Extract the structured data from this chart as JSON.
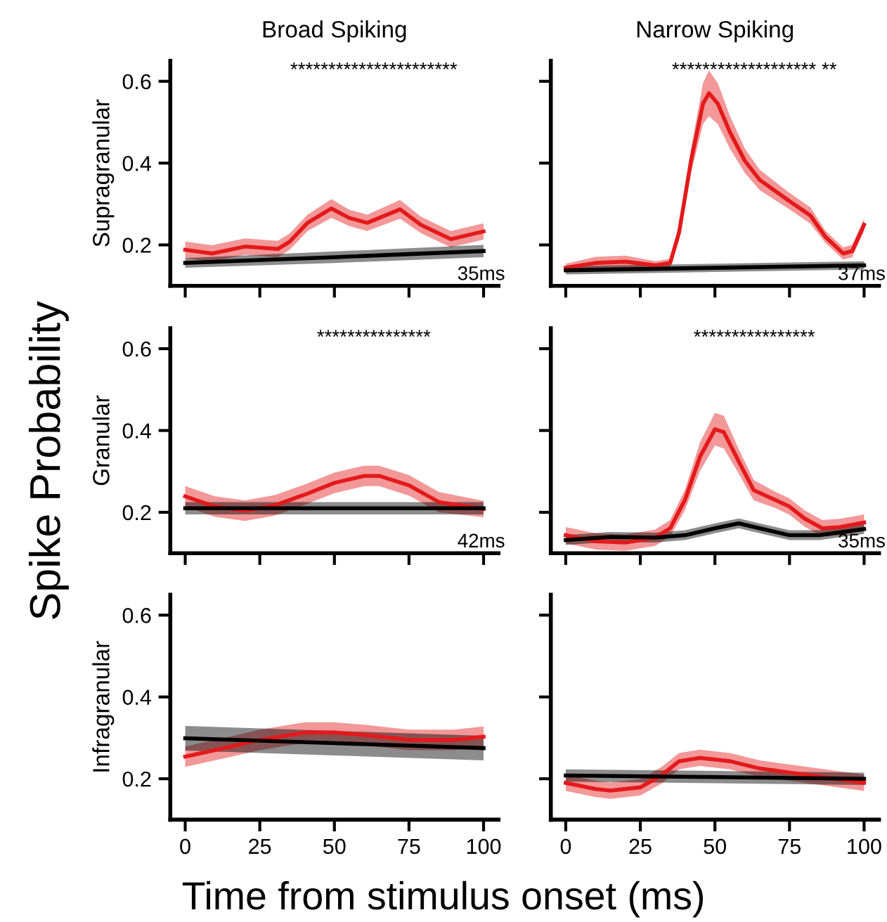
{
  "chart_data": [
    {
      "type": "line",
      "title": "Broad Spiking",
      "ylabel": "Supragranular",
      "xlim": [
        -5,
        105
      ],
      "ylim": [
        0.1,
        0.65
      ],
      "xticks": [
        0,
        25,
        50,
        75,
        100
      ],
      "yticks": [
        0.2,
        0.4,
        0.6
      ],
      "tick_labels": "y",
      "annotations": [
        "**********************",
        "35ms",
        "Spike Probability"
      ],
      "series": [
        {
          "color": "#e31a1c",
          "x": [
            0,
            9,
            20,
            31,
            35,
            41,
            49,
            55,
            61,
            72,
            79,
            89,
            100
          ],
          "values": [
            0.188,
            0.179,
            0.196,
            0.19,
            0.208,
            0.254,
            0.289,
            0.266,
            0.254,
            0.287,
            0.249,
            0.214,
            0.233
          ],
          "lower": [
            0.168,
            0.159,
            0.176,
            0.17,
            0.188,
            0.234,
            0.266,
            0.246,
            0.234,
            0.264,
            0.229,
            0.194,
            0.213
          ],
          "upper": [
            0.208,
            0.199,
            0.216,
            0.21,
            0.228,
            0.274,
            0.312,
            0.286,
            0.274,
            0.31,
            0.269,
            0.234,
            0.253
          ]
        },
        {
          "color": "#000000",
          "x": [
            0,
            50,
            100
          ],
          "values": [
            0.156,
            0.17,
            0.185
          ],
          "lower": [
            0.144,
            0.156,
            0.17
          ],
          "upper": [
            0.168,
            0.184,
            0.2
          ]
        }
      ]
    },
    {
      "type": "line",
      "title": "Narrow Spiking",
      "xlim": [
        -5,
        105
      ],
      "ylim": [
        0.1,
        0.65
      ],
      "xticks": [
        0,
        25,
        50,
        75,
        100
      ],
      "yticks": [
        0.2,
        0.4,
        0.6
      ],
      "tick_labels": false,
      "annotations": [
        "******************* **",
        "37ms"
      ],
      "series": [
        {
          "color": "#e31a1c",
          "x": [
            0,
            10,
            20,
            30,
            35,
            38,
            42,
            46,
            48,
            51,
            55,
            60,
            65,
            75,
            82,
            87,
            93,
            96,
            100
          ],
          "values": [
            0.144,
            0.156,
            0.159,
            0.15,
            0.156,
            0.231,
            0.406,
            0.545,
            0.571,
            0.545,
            0.476,
            0.406,
            0.359,
            0.307,
            0.272,
            0.22,
            0.179,
            0.185,
            0.249
          ],
          "lower": [
            0.134,
            0.141,
            0.144,
            0.14,
            0.146,
            0.211,
            0.376,
            0.495,
            0.515,
            0.495,
            0.436,
            0.376,
            0.334,
            0.287,
            0.252,
            0.205,
            0.164,
            0.17,
            0.234
          ],
          "upper": [
            0.154,
            0.171,
            0.174,
            0.16,
            0.166,
            0.251,
            0.436,
            0.595,
            0.627,
            0.595,
            0.516,
            0.436,
            0.384,
            0.327,
            0.292,
            0.235,
            0.194,
            0.2,
            0.264
          ]
        },
        {
          "color": "#000000",
          "x": [
            0,
            50,
            100
          ],
          "values": [
            0.138,
            0.144,
            0.15
          ],
          "lower": [
            0.128,
            0.134,
            0.14
          ],
          "upper": [
            0.148,
            0.154,
            0.16
          ]
        }
      ]
    },
    {
      "type": "line",
      "ylabel": "Granular",
      "xlim": [
        -5,
        105
      ],
      "ylim": [
        0.1,
        0.65
      ],
      "xticks": [
        0,
        25,
        50,
        75,
        100
      ],
      "yticks": [
        0.2,
        0.4,
        0.6
      ],
      "tick_labels": "y",
      "annotations": [
        "***************",
        "42ms"
      ],
      "series": [
        {
          "color": "#e31a1c",
          "x": [
            0,
            10,
            20,
            30,
            40,
            50,
            60,
            65,
            75,
            85,
            100
          ],
          "values": [
            0.239,
            0.214,
            0.204,
            0.217,
            0.243,
            0.272,
            0.289,
            0.289,
            0.266,
            0.225,
            0.208
          ],
          "lower": [
            0.214,
            0.189,
            0.179,
            0.192,
            0.218,
            0.247,
            0.264,
            0.264,
            0.241,
            0.2,
            0.188
          ],
          "upper": [
            0.264,
            0.239,
            0.229,
            0.242,
            0.268,
            0.297,
            0.314,
            0.314,
            0.291,
            0.25,
            0.228
          ]
        },
        {
          "color": "#000000",
          "x": [
            0,
            50,
            100
          ],
          "values": [
            0.21,
            0.21,
            0.21
          ],
          "lower": [
            0.195,
            0.195,
            0.195
          ],
          "upper": [
            0.225,
            0.225,
            0.225
          ]
        }
      ]
    },
    {
      "type": "line",
      "xlim": [
        -5,
        105
      ],
      "ylim": [
        0.1,
        0.65
      ],
      "xticks": [
        0,
        25,
        50,
        75,
        100
      ],
      "yticks": [
        0.2,
        0.4,
        0.6
      ],
      "tick_labels": false,
      "annotations": [
        "****************",
        "35ms"
      ],
      "series": [
        {
          "color": "#e31a1c",
          "x": [
            0,
            10,
            20,
            30,
            35,
            40,
            45,
            50,
            53,
            58,
            63,
            70,
            75,
            80,
            86,
            92,
            100
          ],
          "values": [
            0.144,
            0.129,
            0.126,
            0.138,
            0.161,
            0.231,
            0.336,
            0.403,
            0.396,
            0.324,
            0.254,
            0.231,
            0.214,
            0.185,
            0.161,
            0.164,
            0.175
          ],
          "lower": [
            0.124,
            0.109,
            0.106,
            0.118,
            0.141,
            0.206,
            0.301,
            0.363,
            0.356,
            0.294,
            0.229,
            0.211,
            0.194,
            0.165,
            0.141,
            0.144,
            0.155
          ],
          "upper": [
            0.164,
            0.149,
            0.146,
            0.158,
            0.181,
            0.256,
            0.371,
            0.443,
            0.436,
            0.354,
            0.279,
            0.251,
            0.234,
            0.205,
            0.181,
            0.184,
            0.195
          ]
        },
        {
          "color": "#000000",
          "x": [
            0,
            15,
            30,
            40,
            50,
            58,
            65,
            75,
            85,
            100
          ],
          "values": [
            0.132,
            0.14,
            0.138,
            0.144,
            0.161,
            0.173,
            0.161,
            0.144,
            0.144,
            0.159
          ],
          "lower": [
            0.12,
            0.128,
            0.126,
            0.132,
            0.149,
            0.161,
            0.149,
            0.132,
            0.132,
            0.147
          ],
          "upper": [
            0.144,
            0.152,
            0.15,
            0.156,
            0.173,
            0.185,
            0.173,
            0.156,
            0.156,
            0.171
          ]
        }
      ]
    },
    {
      "type": "line",
      "ylabel": "Infragranular",
      "xlabel": "Time from stimulus onset (ms)",
      "xlim": [
        -5,
        105
      ],
      "ylim": [
        0.1,
        0.65
      ],
      "xticks": [
        0,
        25,
        50,
        75,
        100
      ],
      "yticks": [
        0.2,
        0.4,
        0.6
      ],
      "series": [
        {
          "color": "#e31a1c",
          "x": [
            0,
            15,
            25,
            40,
            50,
            60,
            75,
            90,
            100
          ],
          "values": [
            0.254,
            0.278,
            0.295,
            0.313,
            0.313,
            0.307,
            0.295,
            0.295,
            0.303
          ],
          "lower": [
            0.229,
            0.253,
            0.27,
            0.288,
            0.288,
            0.282,
            0.27,
            0.27,
            0.278
          ],
          "upper": [
            0.279,
            0.303,
            0.32,
            0.338,
            0.338,
            0.332,
            0.32,
            0.32,
            0.328
          ]
        },
        {
          "color": "#000000",
          "x": [
            0,
            25,
            50,
            75,
            100
          ],
          "values": [
            0.299,
            0.293,
            0.287,
            0.281,
            0.275
          ],
          "lower": [
            0.269,
            0.263,
            0.257,
            0.251,
            0.245
          ],
          "upper": [
            0.329,
            0.323,
            0.317,
            0.311,
            0.305
          ]
        }
      ]
    },
    {
      "type": "line",
      "xlim": [
        -5,
        105
      ],
      "ylim": [
        0.1,
        0.65
      ],
      "xticks": [
        0,
        25,
        50,
        75,
        100
      ],
      "yticks": [
        0.2,
        0.4,
        0.6
      ],
      "tick_labels": "x",
      "series": [
        {
          "color": "#e31a1c",
          "x": [
            0,
            10,
            15,
            25,
            32,
            38,
            45,
            55,
            65,
            80,
            100
          ],
          "values": [
            0.19,
            0.175,
            0.171,
            0.179,
            0.208,
            0.243,
            0.251,
            0.243,
            0.225,
            0.21,
            0.19
          ],
          "lower": [
            0.17,
            0.155,
            0.151,
            0.159,
            0.188,
            0.223,
            0.231,
            0.223,
            0.205,
            0.19,
            0.17
          ],
          "upper": [
            0.21,
            0.195,
            0.191,
            0.199,
            0.228,
            0.263,
            0.271,
            0.263,
            0.245,
            0.23,
            0.21
          ]
        },
        {
          "color": "#000000",
          "x": [
            0,
            50,
            100
          ],
          "values": [
            0.208,
            0.204,
            0.2
          ],
          "lower": [
            0.193,
            0.189,
            0.185
          ],
          "upper": [
            0.223,
            0.219,
            0.215
          ]
        }
      ]
    }
  ]
}
